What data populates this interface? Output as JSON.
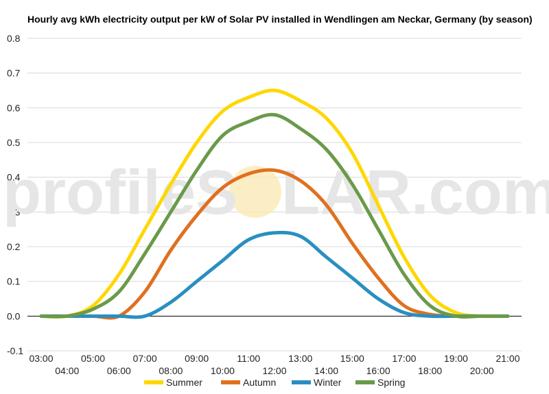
{
  "chart_data": {
    "type": "line",
    "title": "Hourly avg kWh electricity output per kW of Solar PV installed in Wendlingen am Neckar, Germany (by season)",
    "xlabel": "",
    "ylabel": "",
    "ylim": [
      -0.1,
      0.8
    ],
    "yticks": [
      -0.1,
      0.0,
      0.1,
      0.2,
      0.3,
      0.4,
      0.5,
      0.6,
      0.7,
      0.8
    ],
    "ytick_labels": [
      "-0.1",
      "0.0",
      "0.1",
      "0.2",
      "0.3",
      "0.4",
      "0.5",
      "0.6",
      "0.7",
      "0.8"
    ],
    "grid": true,
    "legend_position": "bottom",
    "watermark_left": "profileS",
    "watermark_right": "LAR.com",
    "x_hours": [
      3,
      4,
      5,
      6,
      7,
      8,
      9,
      10,
      11,
      12,
      13,
      14,
      15,
      16,
      17,
      18,
      19,
      20,
      21
    ],
    "x_tick_labels": [
      "03:00",
      "04:00",
      "05:00",
      "06:00",
      "07:00",
      "08:00",
      "09:00",
      "10:00",
      "11:00",
      "12:00",
      "13:00",
      "14:00",
      "15:00",
      "16:00",
      "17:00",
      "18:00",
      "19:00",
      "20:00",
      "21:00"
    ],
    "series": [
      {
        "name": "Summer",
        "color": "#FFD700",
        "values": [
          0.0,
          0.0,
          0.03,
          0.12,
          0.25,
          0.38,
          0.5,
          0.59,
          0.63,
          0.65,
          0.62,
          0.57,
          0.47,
          0.32,
          0.17,
          0.06,
          0.01,
          0.0,
          0.0
        ]
      },
      {
        "name": "Autumn",
        "color": "#E07020",
        "values": [
          0.0,
          0.0,
          0.0,
          0.0,
          0.07,
          0.19,
          0.29,
          0.37,
          0.41,
          0.42,
          0.39,
          0.32,
          0.21,
          0.11,
          0.03,
          0.005,
          0.0,
          0.0,
          0.0
        ]
      },
      {
        "name": "Winter",
        "color": "#2A8FC0",
        "values": [
          0.0,
          0.0,
          0.0,
          0.0,
          0.0,
          0.04,
          0.1,
          0.16,
          0.22,
          0.24,
          0.23,
          0.17,
          0.11,
          0.05,
          0.01,
          0.0,
          0.0,
          0.0,
          0.0
        ]
      },
      {
        "name": "Spring",
        "color": "#6A9A4A",
        "values": [
          0.0,
          0.0,
          0.02,
          0.07,
          0.18,
          0.3,
          0.42,
          0.52,
          0.56,
          0.58,
          0.54,
          0.48,
          0.38,
          0.25,
          0.12,
          0.03,
          0.0,
          0.0,
          0.0
        ]
      }
    ]
  }
}
